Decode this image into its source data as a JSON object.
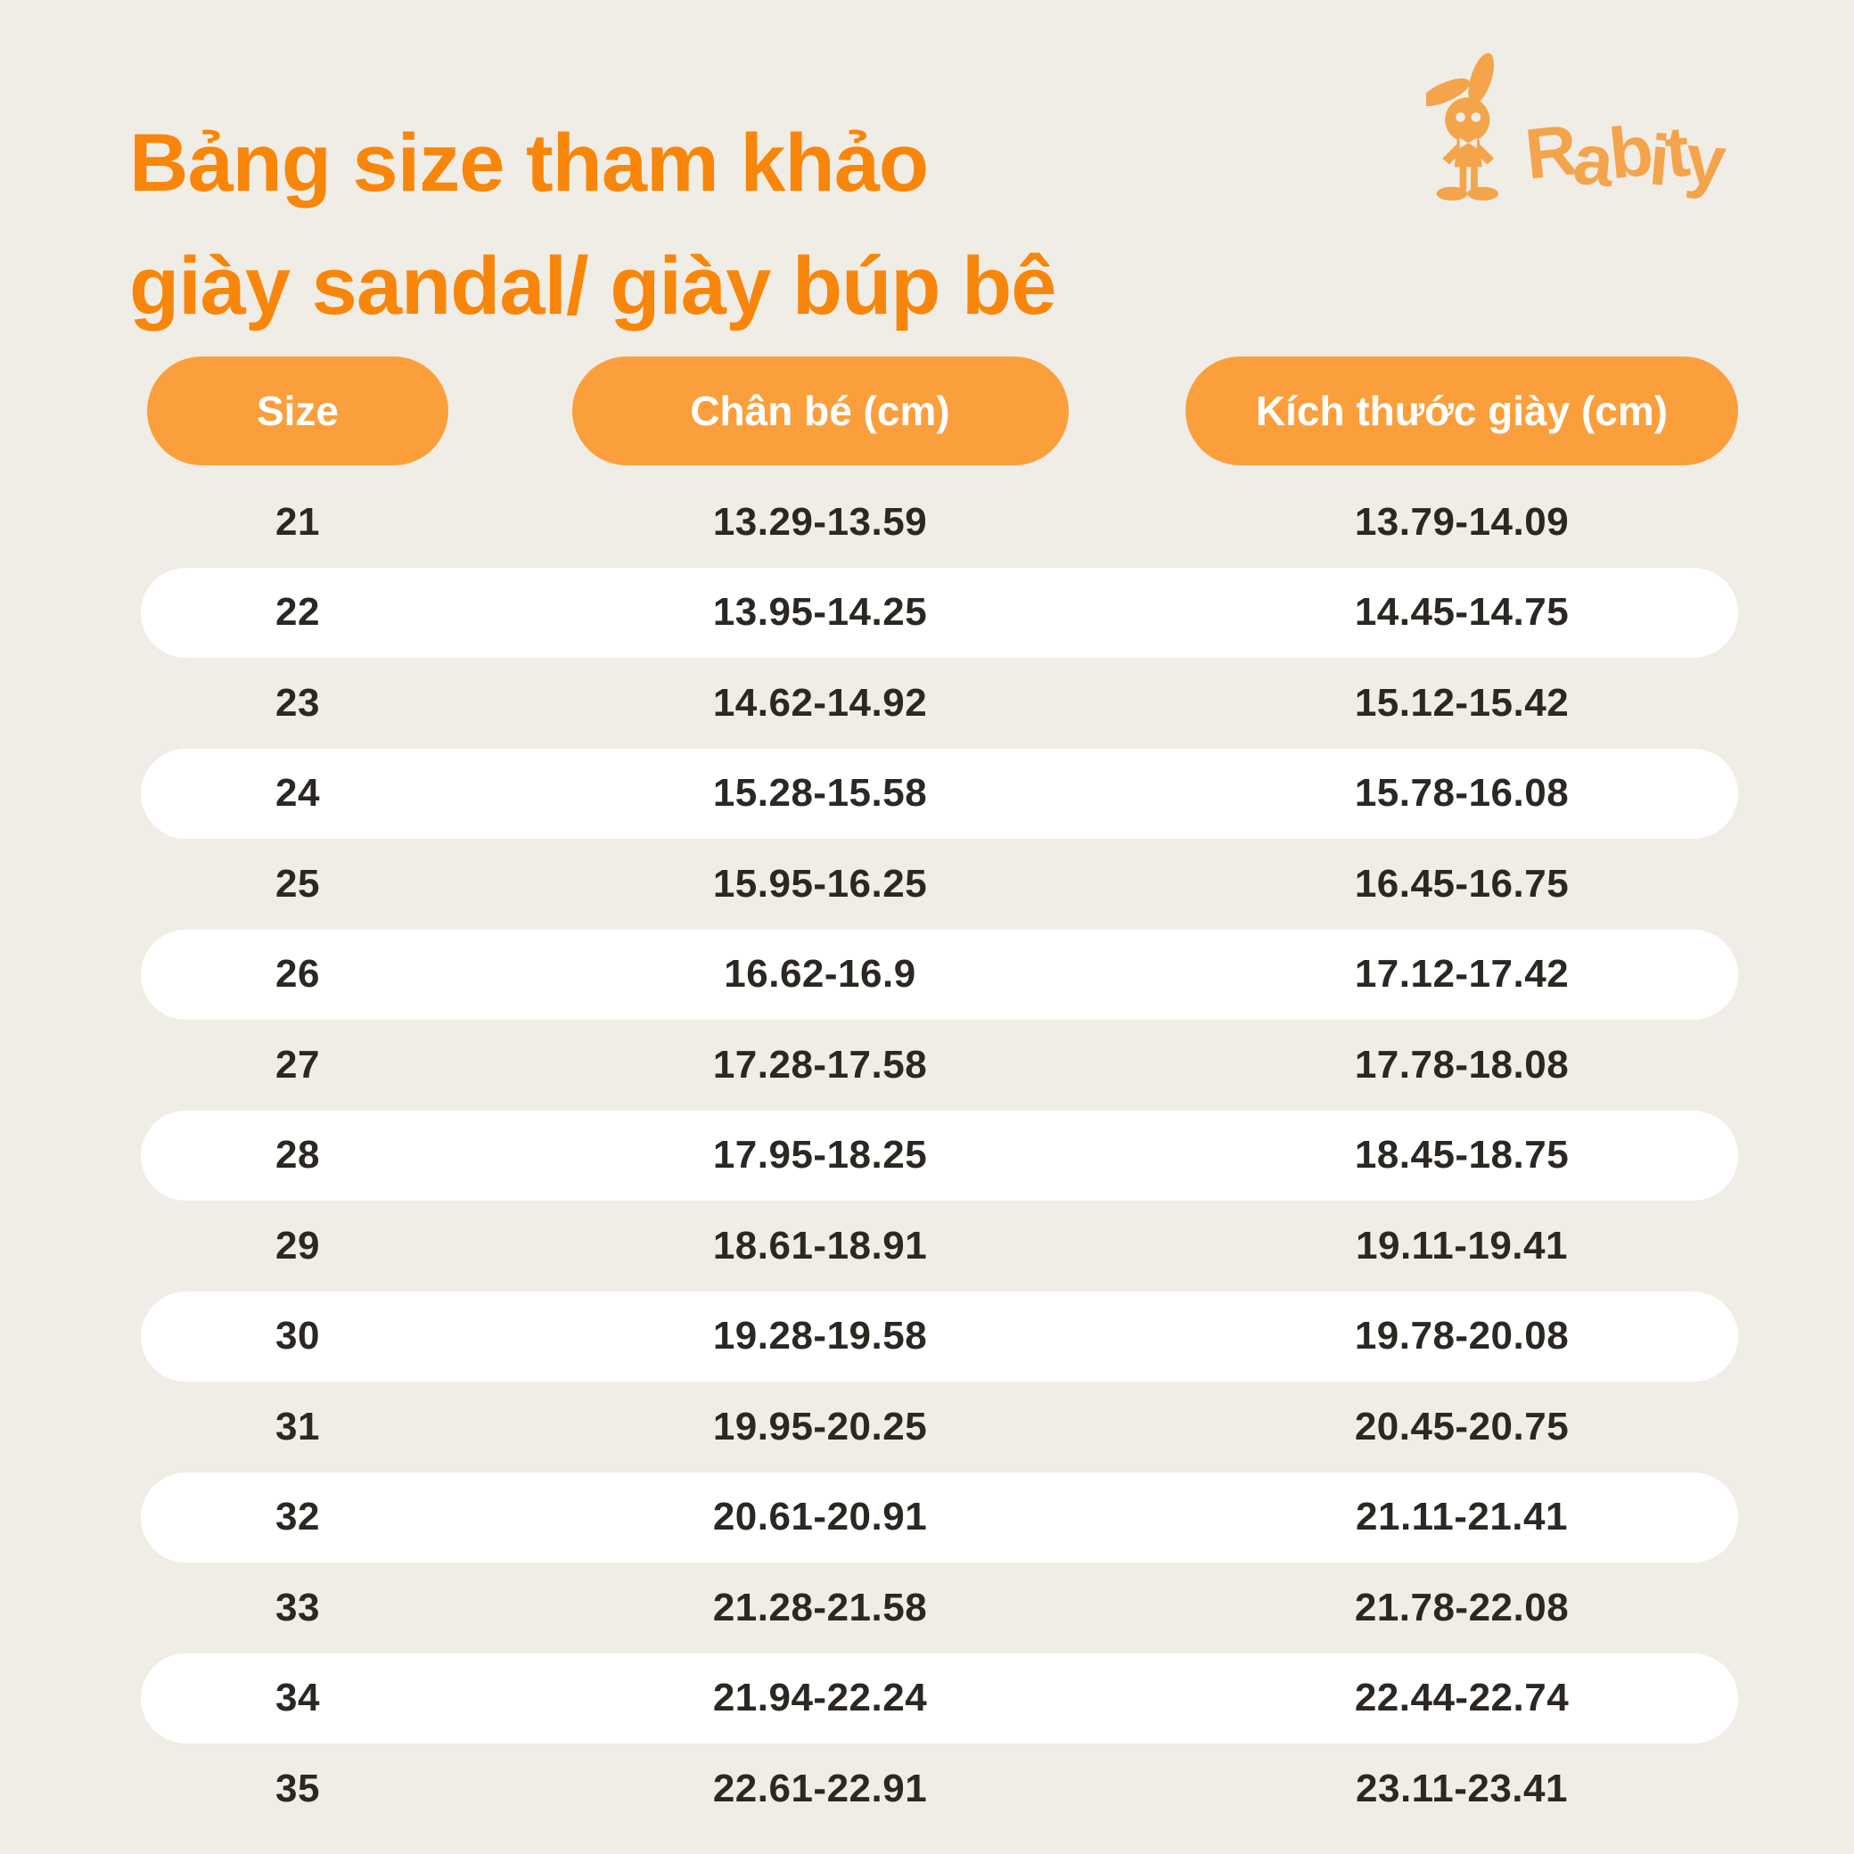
{
  "page": {
    "background": "#F0EDE6",
    "accent_orange": "#F8860B",
    "pill_orange": "#FB9F3C",
    "logo_orange": "#F4A44B",
    "text_dark": "#2B2823",
    "row_highlight": "#FFFFFF"
  },
  "title": {
    "line1": "Bảng size tham khảo",
    "line2": "giày sandal/ giày búp bê"
  },
  "logo": {
    "brand": "Rabity",
    "mascot": "rabbit-icon"
  },
  "table": {
    "columns": [
      {
        "id": "size",
        "label": "Size"
      },
      {
        "id": "foot",
        "label": "Chân bé (cm)"
      },
      {
        "id": "shoe",
        "label": "Kích thước giày (cm)"
      }
    ],
    "rows": [
      {
        "size": "21",
        "foot": "13.29-13.59",
        "shoe": "13.79-14.09",
        "highlight": false
      },
      {
        "size": "22",
        "foot": "13.95-14.25",
        "shoe": "14.45-14.75",
        "highlight": true
      },
      {
        "size": "23",
        "foot": "14.62-14.92",
        "shoe": "15.12-15.42",
        "highlight": false
      },
      {
        "size": "24",
        "foot": "15.28-15.58",
        "shoe": "15.78-16.08",
        "highlight": true
      },
      {
        "size": "25",
        "foot": "15.95-16.25",
        "shoe": "16.45-16.75",
        "highlight": false
      },
      {
        "size": "26",
        "foot": "16.62-16.9",
        "shoe": "17.12-17.42",
        "highlight": true
      },
      {
        "size": "27",
        "foot": "17.28-17.58",
        "shoe": "17.78-18.08",
        "highlight": false
      },
      {
        "size": "28",
        "foot": "17.95-18.25",
        "shoe": "18.45-18.75",
        "highlight": true
      },
      {
        "size": "29",
        "foot": "18.61-18.91",
        "shoe": "19.11-19.41",
        "highlight": false
      },
      {
        "size": "30",
        "foot": "19.28-19.58",
        "shoe": "19.78-20.08",
        "highlight": true
      },
      {
        "size": "31",
        "foot": "19.95-20.25",
        "shoe": "20.45-20.75",
        "highlight": false
      },
      {
        "size": "32",
        "foot": "20.61-20.91",
        "shoe": "21.11-21.41",
        "highlight": true
      },
      {
        "size": "33",
        "foot": "21.28-21.58",
        "shoe": "21.78-22.08",
        "highlight": false
      },
      {
        "size": "34",
        "foot": "21.94-22.24",
        "shoe": "22.44-22.74",
        "highlight": true
      },
      {
        "size": "35",
        "foot": "22.61-22.91",
        "shoe": "23.11-23.41",
        "highlight": false
      }
    ]
  }
}
